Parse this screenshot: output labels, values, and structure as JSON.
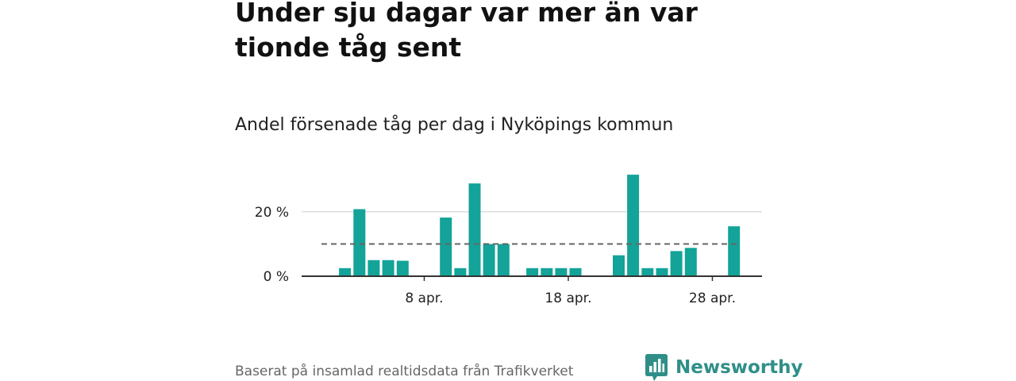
{
  "title": "Under sju dagar var mer än var tionde tåg sent",
  "subtitle": "Andel försenade tåg per dag i Nyköpings kommun",
  "source": "Baserat på insamlad realtidsdata från Trafikverket",
  "brand": {
    "name": "Newsworthy",
    "icon": "newsworthy-logo-icon",
    "color": "#2f8f88"
  },
  "colors": {
    "bar": "#13a399",
    "reference_line": "#666666",
    "grid": "#dddddd",
    "axis": "#333333"
  },
  "chart_data": {
    "type": "bar",
    "title": "Andel försenade tåg per dag i Nyköpings kommun",
    "xlabel": "",
    "ylabel": "",
    "x_unit": "day of April",
    "days": [
      1,
      2,
      3,
      4,
      5,
      6,
      7,
      8,
      9,
      10,
      11,
      12,
      13,
      14,
      15,
      16,
      17,
      18,
      19,
      20,
      21,
      22,
      23,
      24,
      25,
      26,
      27,
      28,
      29,
      30
    ],
    "values": [
      null,
      2.5,
      20.8,
      5,
      5,
      4.8,
      null,
      null,
      18.2,
      2.5,
      28.8,
      10,
      10,
      null,
      2.5,
      2.5,
      2.5,
      2.5,
      null,
      null,
      6.5,
      31.5,
      2.5,
      2.5,
      7.8,
      8.8,
      null,
      null,
      15.5,
      null
    ],
    "x_ticks": [
      {
        "day": 8,
        "label": "8 apr."
      },
      {
        "day": 18,
        "label": "18 apr."
      },
      {
        "day": 28,
        "label": "28 apr."
      }
    ],
    "y_ticks": [
      {
        "value": 0,
        "label": "0 %"
      },
      {
        "value": 20,
        "label": "20 %"
      }
    ],
    "reference_line": {
      "value": 10,
      "style": "dashed"
    },
    "ylim": [
      0,
      33
    ],
    "grid": true,
    "legend": "none"
  }
}
